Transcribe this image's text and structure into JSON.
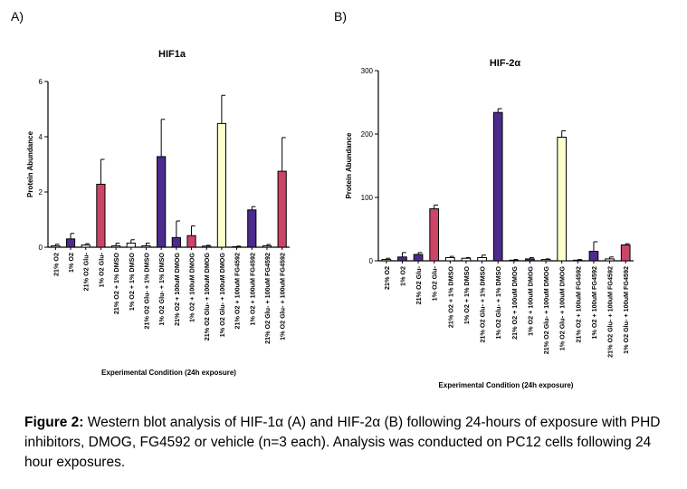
{
  "panels": {
    "a_label": "A)",
    "b_label": "B)"
  },
  "caption": {
    "bold": "Figure 2:",
    "text": " Western blot analysis of HIF-1α (A) and HIF-2α (B) following 24-hours of exposure with PHD inhibitors, DMOG, FG4592 or vehicle (n=3 each). Analysis was conducted on PC12 cells following 24 hour exposures."
  },
  "colors": {
    "white": "#ffffff",
    "purple": "#4b2b8c",
    "pink": "#cc4466",
    "yellow": "#ffffcc",
    "axis": "#000000"
  },
  "chart_data": [
    {
      "type": "bar",
      "title": "HIF1a",
      "xlabel": "Experimental Condition (24h exposure)",
      "ylabel": "Protein Abundance",
      "ylim": [
        0,
        6
      ],
      "yticks": [
        "0",
        "2",
        "4",
        "6"
      ],
      "categories": [
        "21% O2",
        "1% O2",
        "21% O2 Glu-",
        "1% O2 Glu-",
        "21% O2 + 1% DMSO",
        "1% O2 + 1% DMSO",
        "21% O2 Glu- + 1% DMSO",
        "1% O2 Glu- + 1% DMSO",
        "21% O2 + 100uM DMOG",
        "1% O2 + 100uM DMOG",
        "21% O2 Glu- + 100uM DMOG",
        "1% O2 Glu- + 100uM DMOG",
        "21% O2 + 100uM FG4592",
        "1% O2 + 100uM FG4592",
        "21% O2 Glu- + 100uM FG4592",
        "1% O2 Glu- + 100uM FG4592"
      ],
      "values": [
        0.05,
        0.3,
        0.08,
        2.28,
        0.05,
        0.15,
        0.05,
        3.28,
        0.35,
        0.42,
        0.04,
        4.48,
        0.02,
        1.35,
        0.05,
        2.75
      ],
      "errors": [
        0.06,
        0.2,
        0.05,
        0.9,
        0.1,
        0.12,
        0.1,
        1.35,
        0.6,
        0.35,
        0.03,
        1.02,
        0.02,
        0.12,
        0.05,
        1.22
      ],
      "bar_colors": [
        "white",
        "purple",
        "white",
        "pink",
        "white",
        "white",
        "white",
        "purple",
        "purple",
        "pink",
        "white",
        "yellow",
        "white",
        "purple",
        "white",
        "pink"
      ],
      "grid": false,
      "legend": "none"
    },
    {
      "type": "bar",
      "title": "HIF-2α",
      "xlabel": "Experimental Condition (24h exposure)",
      "ylabel": "Protein Abundance",
      "ylim": [
        0,
        300
      ],
      "yticks": [
        "0",
        "100",
        "200",
        "300"
      ],
      "categories": [
        "21% O2",
        "1% O2",
        "21% O2 Glu-",
        "1% O2 Glu-",
        "21% O2 + 1% DMSO",
        "1% O2 + 1% DMSO",
        "21% O2 Glu- + 1% DMSO",
        "1% O2 Glu- + 1% DMSO",
        "21% O2 + 100uM DMOG",
        "1% O2 + 100uM DMOG",
        "21% O2 Glu- + 100uM DMOG",
        "1% O2 Glu- + 100uM DMOG",
        "21% O2 + 100uM FG4592",
        "1% O2 + 100uM FG4592",
        "21% O2 Glu- + 100uM FG4592",
        "1% O2 Glu- + 100uM FG4592"
      ],
      "values": [
        2,
        6,
        10,
        82,
        5,
        4,
        5,
        234,
        1,
        3,
        2,
        195,
        1,
        15,
        3,
        25
      ],
      "errors": [
        2,
        7,
        3,
        6,
        2,
        1,
        4,
        6,
        1,
        2,
        1,
        10,
        1,
        15,
        3,
        2
      ],
      "bar_colors": [
        "white",
        "purple",
        "purple",
        "pink",
        "white",
        "white",
        "white",
        "purple",
        "white",
        "purple",
        "white",
        "yellow",
        "white",
        "purple",
        "white",
        "pink"
      ],
      "grid": false,
      "legend": "none"
    }
  ]
}
